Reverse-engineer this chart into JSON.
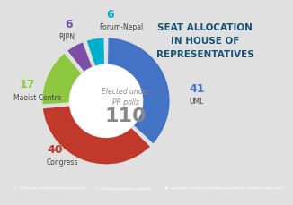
{
  "title_line1": "SEAT ALLOCATION",
  "title_line2": "IN HOUSE OF",
  "title_line3": "REPRESENTATIVES",
  "center_label_line1": "Elected under",
  "center_label_line2": "PR polls",
  "center_total": "110",
  "parties": [
    "UML",
    "Congress",
    "Maoist Centre",
    "RJPN",
    "Forum-Nepal"
  ],
  "values": [
    41,
    40,
    17,
    6,
    6
  ],
  "colors": [
    "#4472C4",
    "#C0392B",
    "#8DC63F",
    "#7B4FA6",
    "#00B0CA"
  ],
  "background_color": "#E0E0E0",
  "title_color": "#1A5276",
  "footer_bg": "#3B6BB5",
  "label_colors": [
    "#4472C4",
    "#C0392B",
    "#8DC63F",
    "#7B4FA6",
    "#00B0CA"
  ],
  "label_text_color": "#444444",
  "center_text_color": "#888888"
}
